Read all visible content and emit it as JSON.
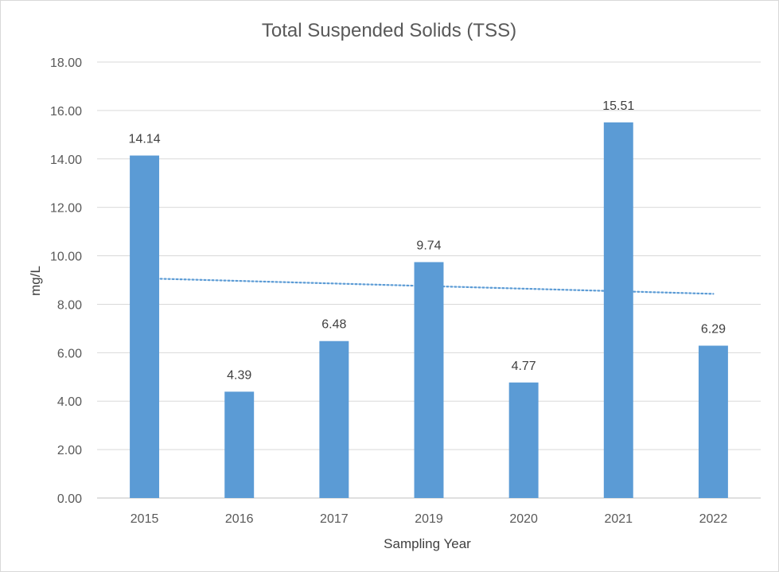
{
  "chart_data": {
    "type": "bar",
    "title": "Total Suspended Solids (TSS)",
    "xlabel": "Sampling Year",
    "ylabel": "mg/L",
    "categories": [
      "2015",
      "2016",
      "2017",
      "2019",
      "2020",
      "2021",
      "2022"
    ],
    "values": [
      14.14,
      4.39,
      6.48,
      9.74,
      4.77,
      15.51,
      6.29
    ],
    "data_labels": [
      "14.14",
      "4.39",
      "6.48",
      "9.74",
      "4.77",
      "15.51",
      "6.29"
    ],
    "ylim": [
      0,
      18
    ],
    "yticks": [
      "0.00",
      "2.00",
      "4.00",
      "6.00",
      "8.00",
      "10.00",
      "12.00",
      "14.00",
      "16.00",
      "18.00"
    ],
    "grid": true,
    "legend": "none",
    "trendline": {
      "type": "linear",
      "style": "dotted",
      "start": 9.07,
      "end": 8.43
    },
    "colors": {
      "bar": "#5b9bd5",
      "trendline": "#5b9bd5"
    }
  }
}
